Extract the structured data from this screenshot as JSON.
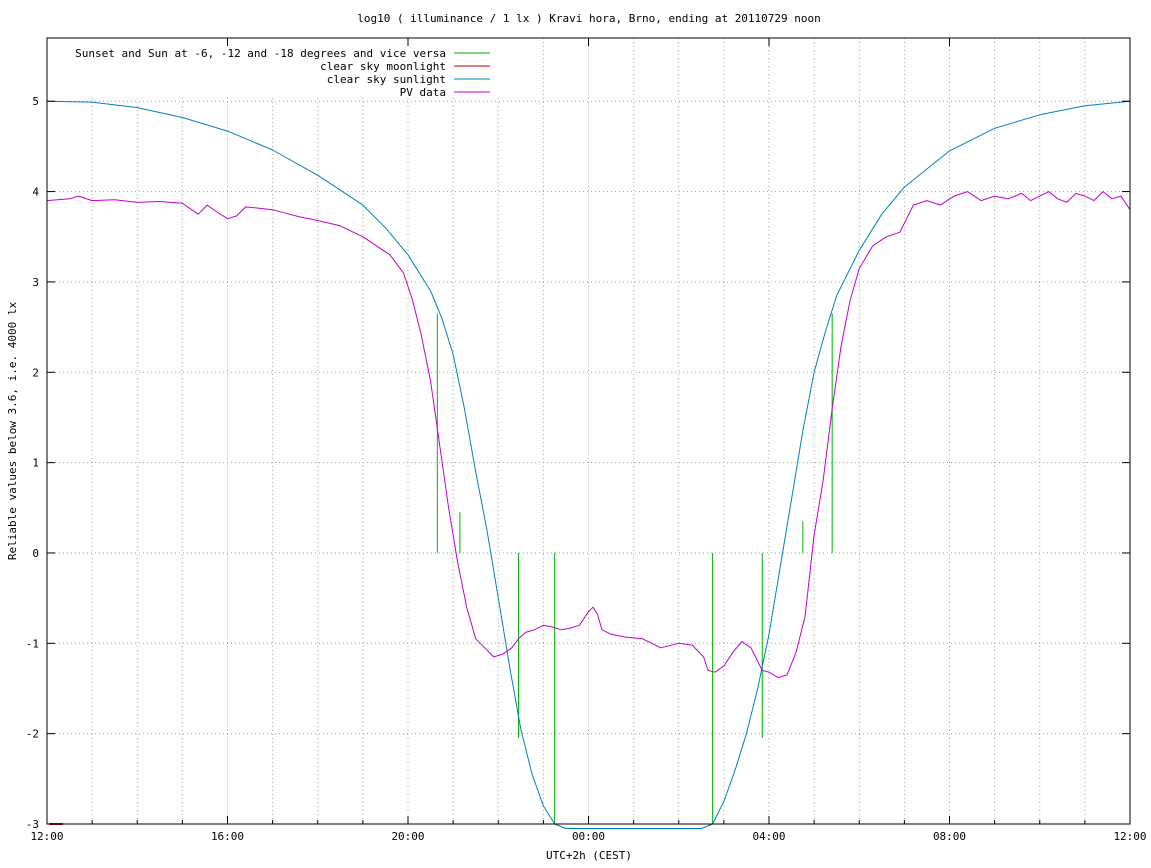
{
  "chart_data": {
    "type": "line",
    "title": "log10 ( illuminance / 1 lx ) Kravi hora, Brno, ending at 20110729 noon",
    "xlabel": "UTC+2h (CEST)",
    "ylabel": "Reliable values below 3.6, i.e. 4000 lx",
    "xlim": [
      0,
      24
    ],
    "ylim": [
      -3,
      5.7
    ],
    "x_unit": "hours after 12:00 (UTC+2h)",
    "x_ticks": [
      {
        "value": 0,
        "label": "12:00"
      },
      {
        "value": 4,
        "label": "16:00"
      },
      {
        "value": 8,
        "label": "20:00"
      },
      {
        "value": 12,
        "label": "00:00"
      },
      {
        "value": 16,
        "label": "04:00"
      },
      {
        "value": 20,
        "label": "08:00"
      },
      {
        "value": 24,
        "label": "12:00"
      }
    ],
    "y_ticks": [
      {
        "value": 5,
        "label": "5"
      },
      {
        "value": 4,
        "label": "4"
      },
      {
        "value": 3,
        "label": "3"
      },
      {
        "value": 2,
        "label": "2"
      },
      {
        "value": 1,
        "label": "1"
      },
      {
        "value": 0,
        "label": "0"
      },
      {
        "value": -1,
        "label": "-1"
      },
      {
        "value": -2,
        "label": "-2"
      },
      {
        "value": -3,
        "label": "-3"
      }
    ],
    "grid": true,
    "legend_position": "top-left",
    "series": [
      {
        "name": "Sunset and Sun at -6, -12 and -18 degrees and vice versa",
        "color": "#00b000",
        "style": "vertical-markers",
        "markers": [
          {
            "x": 8.65,
            "y0": 0,
            "y1": 2.65
          },
          {
            "x": 9.15,
            "y0": 0,
            "y1": 0.45
          },
          {
            "x": 10.45,
            "y0": -2.05,
            "y1": 0
          },
          {
            "x": 11.25,
            "y0": -3,
            "y1": 0
          },
          {
            "x": 14.75,
            "y0": -3,
            "y1": 0
          },
          {
            "x": 15.85,
            "y0": -2.05,
            "y1": 0
          },
          {
            "x": 16.75,
            "y0": 0,
            "y1": 0.35
          },
          {
            "x": 17.4,
            "y0": 0,
            "y1": 2.65
          }
        ]
      },
      {
        "name": "clear sky moonlight",
        "color": "#c00000",
        "style": "line",
        "x": [
          0.05,
          0.35
        ],
        "y": [
          -3,
          -3
        ]
      },
      {
        "name": "clear sky sunlight",
        "color": "#0080c0",
        "style": "line",
        "x": [
          0,
          1,
          2,
          3,
          4,
          5,
          6,
          7,
          7.5,
          8,
          8.5,
          8.75,
          9,
          9.25,
          9.5,
          9.75,
          10,
          10.25,
          10.5,
          10.75,
          11,
          11.25,
          11.5,
          14.5,
          14.75,
          15,
          15.25,
          15.5,
          15.75,
          16,
          16.25,
          16.5,
          16.75,
          17,
          17.25,
          17.5,
          18,
          18.5,
          19,
          20,
          21,
          22,
          23,
          24
        ],
        "y": [
          5.0,
          4.99,
          4.93,
          4.82,
          4.67,
          4.46,
          4.18,
          3.85,
          3.6,
          3.3,
          2.9,
          2.6,
          2.2,
          1.6,
          0.9,
          0.25,
          -0.5,
          -1.25,
          -1.95,
          -2.45,
          -2.8,
          -3.0,
          -3.05,
          -3.05,
          -3.0,
          -2.75,
          -2.4,
          -2.0,
          -1.5,
          -0.9,
          -0.15,
          0.6,
          1.35,
          2.0,
          2.45,
          2.85,
          3.35,
          3.75,
          4.05,
          4.45,
          4.7,
          4.85,
          4.95,
          5.0
        ]
      },
      {
        "name": "PV data",
        "color": "#c000d0",
        "style": "line",
        "x": [
          0,
          0.5,
          0.7,
          1.0,
          1.5,
          2.0,
          2.5,
          3.0,
          3.35,
          3.55,
          3.75,
          4.0,
          4.2,
          4.4,
          4.6,
          4.8,
          5.0,
          5.3,
          5.6,
          6.0,
          6.5,
          7.0,
          7.3,
          7.6,
          7.9,
          8.1,
          8.3,
          8.5,
          8.7,
          8.9,
          9.1,
          9.3,
          9.5,
          9.7,
          9.9,
          10.1,
          10.3,
          10.45,
          10.6,
          10.8,
          11.0,
          11.2,
          11.4,
          11.6,
          11.8,
          12.0,
          12.1,
          12.2,
          12.3,
          12.5,
          12.8,
          13.2,
          13.6,
          14.0,
          14.3,
          14.55,
          14.65,
          14.8,
          15.0,
          15.2,
          15.4,
          15.6,
          15.85,
          16.0,
          16.2,
          16.4,
          16.6,
          16.8,
          17.0,
          17.2,
          17.4,
          17.6,
          17.8,
          18.0,
          18.3,
          18.6,
          18.9,
          19.2,
          19.5,
          19.8,
          20.1,
          20.4,
          20.7,
          21.0,
          21.3,
          21.6,
          21.8,
          22.0,
          22.2,
          22.4,
          22.6,
          22.8,
          23.0,
          23.2,
          23.4,
          23.6,
          23.8,
          24.0
        ],
        "y": [
          3.9,
          3.92,
          3.95,
          3.9,
          3.91,
          3.88,
          3.89,
          3.87,
          3.75,
          3.85,
          3.78,
          3.7,
          3.73,
          3.83,
          3.82,
          3.81,
          3.8,
          3.76,
          3.72,
          3.68,
          3.62,
          3.5,
          3.4,
          3.3,
          3.1,
          2.8,
          2.4,
          1.9,
          1.2,
          0.5,
          -0.1,
          -0.6,
          -0.95,
          -1.05,
          -1.15,
          -1.12,
          -1.05,
          -0.95,
          -0.88,
          -0.85,
          -0.8,
          -0.82,
          -0.85,
          -0.83,
          -0.8,
          -0.65,
          -0.6,
          -0.68,
          -0.85,
          -0.9,
          -0.93,
          -0.95,
          -1.05,
          -1.0,
          -1.02,
          -1.15,
          -1.3,
          -1.32,
          -1.25,
          -1.1,
          -0.98,
          -1.05,
          -1.3,
          -1.32,
          -1.38,
          -1.35,
          -1.1,
          -0.7,
          0.2,
          0.8,
          1.6,
          2.3,
          2.8,
          3.15,
          3.4,
          3.5,
          3.55,
          3.85,
          3.9,
          3.85,
          3.95,
          4.0,
          3.9,
          3.95,
          3.92,
          3.98,
          3.9,
          3.95,
          4.0,
          3.92,
          3.88,
          3.98,
          3.95,
          3.9,
          4.0,
          3.92,
          3.95,
          3.8
        ]
      }
    ]
  }
}
